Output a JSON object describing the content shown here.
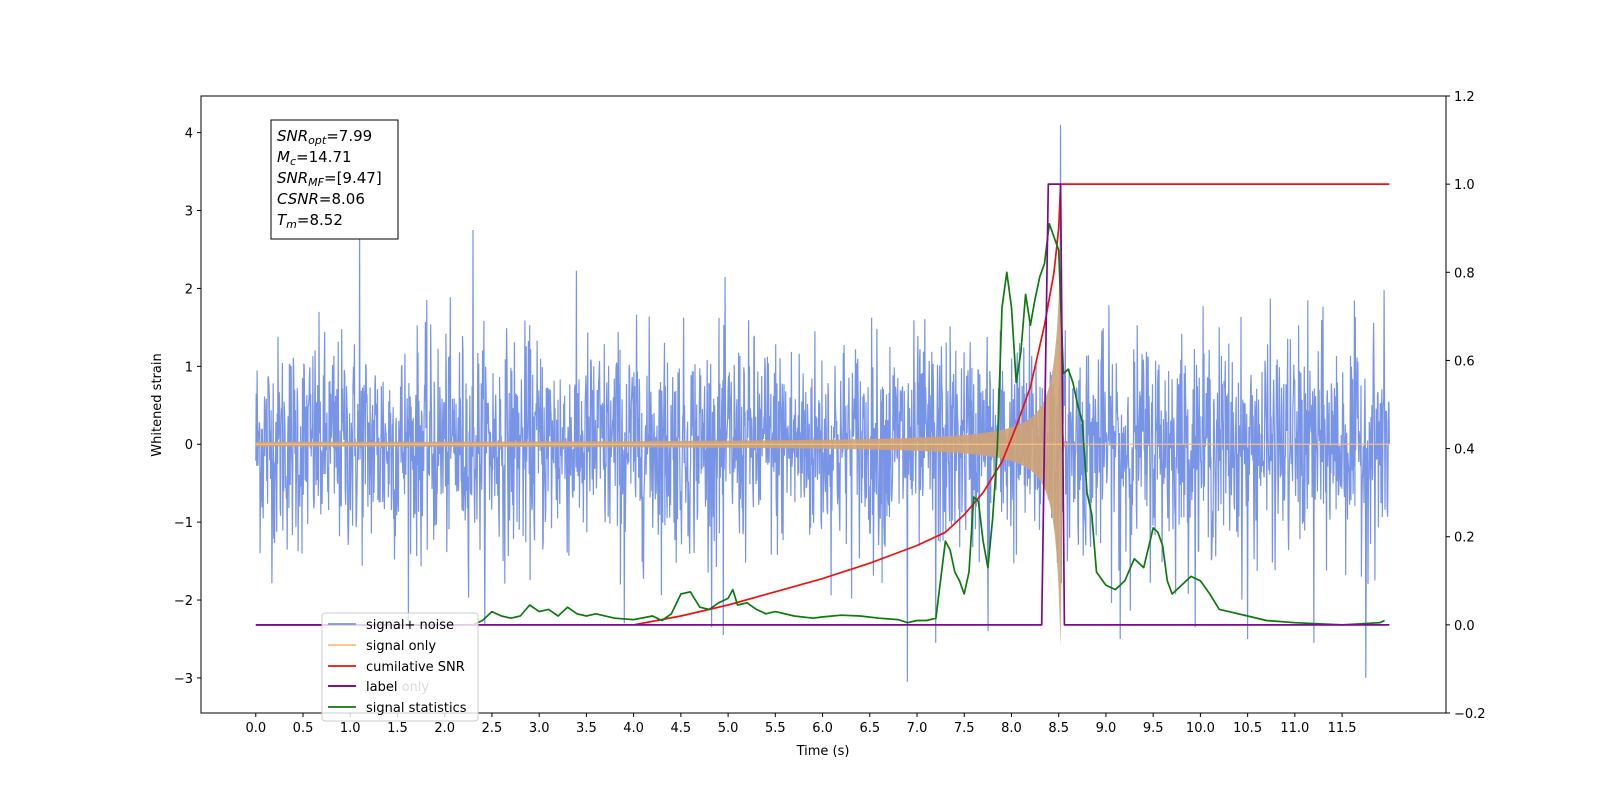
{
  "chart_data": {
    "type": "line",
    "xlabel": "Time (s)",
    "ylabel": "Whitened strain",
    "xlim": [
      -0.58,
      12.6
    ],
    "ylim": [
      -3.45,
      4.47
    ],
    "y2lim": [
      -0.2,
      1.2
    ],
    "x_ticks": [
      "0.0",
      "0.5",
      "1.0",
      "1.5",
      "2.0",
      "2.5",
      "3.0",
      "3.5",
      "4.0",
      "4.5",
      "5.0",
      "5.5",
      "6.0",
      "6.5",
      "7.0",
      "7.5",
      "8.0",
      "8.5",
      "9.0",
      "9.5",
      "10.0",
      "10.5",
      "11.0",
      "11.5"
    ],
    "y_ticks": [
      "−3",
      "−2",
      "−1",
      "0",
      "1",
      "2",
      "3",
      "4"
    ],
    "y2_ticks": [
      "−0.2",
      "0.0",
      "0.2",
      "0.4",
      "0.6",
      "0.8",
      "1.0",
      "1.2"
    ],
    "colors": {
      "signal_noise": "#7894e6",
      "signal_only": "#f5c27a",
      "signal_fill": "#cfa274",
      "cumulative_snr": "#ee1111",
      "label": "#7a0a8a",
      "statistics": "#0e7a0e"
    },
    "annotation": [
      {
        "base": "SNR",
        "sub": "opt",
        "value": "=7.99"
      },
      {
        "base": "M",
        "sub": "c",
        "value": "=14.71"
      },
      {
        "base": "SNR",
        "sub": "MF",
        "value": "=[9.47]"
      },
      {
        "base": "CSNR",
        "sub": "",
        "value": "=8.06"
      },
      {
        "base": "T",
        "sub": "m",
        "value": "=8.52"
      }
    ],
    "legend": [
      "signal+ noise",
      "signal only",
      "cumilative SNR",
      "label",
      "label only",
      "signal statistics"
    ],
    "legend_position": "lower-left",
    "series": [
      {
        "name": "signal+ noise",
        "axis": "left",
        "kind": "noise",
        "x_range": [
          0.0,
          12.0
        ],
        "std": 0.68,
        "spike_x": [
          1.1,
          2.3,
          3.9,
          4.95,
          6.9,
          7.2,
          7.75,
          8.52,
          9.15,
          10.5,
          11.2,
          11.75
        ],
        "spike_y": [
          2.7,
          2.75,
          -2.3,
          -2.45,
          -3.05,
          -2.55,
          -2.4,
          4.1,
          -2.5,
          -2.5,
          -2.55,
          -3.0
        ]
      },
      {
        "name": "signal only",
        "axis": "left",
        "kind": "chirp",
        "t_merger": 8.52,
        "peak_amplitude": 2.6
      },
      {
        "name": "cumilative SNR",
        "axis": "right",
        "x": [
          4.0,
          4.5,
          5.0,
          5.5,
          6.0,
          6.5,
          7.0,
          7.3,
          7.5,
          7.7,
          7.9,
          8.05,
          8.2,
          8.35,
          8.45,
          8.5,
          8.52,
          9.0,
          10.0,
          11.0,
          12.0
        ],
        "y": [
          0.0,
          0.02,
          0.045,
          0.075,
          0.105,
          0.14,
          0.18,
          0.21,
          0.25,
          0.3,
          0.37,
          0.45,
          0.54,
          0.68,
          0.8,
          0.9,
          1.0,
          1.0,
          1.0,
          1.0,
          1.0
        ]
      },
      {
        "name": "label",
        "axis": "right",
        "x": [
          0.0,
          8.32,
          8.39,
          8.52,
          8.56,
          12.0
        ],
        "y": [
          0.0,
          0.0,
          1.0,
          1.0,
          0.0,
          0.0
        ]
      },
      {
        "name": "signal statistics",
        "axis": "right",
        "x": [
          0.0,
          2.3,
          2.4,
          2.5,
          2.6,
          2.7,
          2.8,
          2.9,
          3.0,
          3.1,
          3.2,
          3.3,
          3.4,
          3.5,
          3.6,
          3.8,
          4.0,
          4.2,
          4.3,
          4.4,
          4.5,
          4.6,
          4.7,
          4.8,
          4.9,
          5.0,
          5.05,
          5.1,
          5.2,
          5.3,
          5.4,
          5.5,
          5.7,
          5.9,
          6.0,
          6.2,
          6.4,
          6.6,
          6.8,
          6.9,
          7.0,
          7.1,
          7.2,
          7.3,
          7.35,
          7.4,
          7.45,
          7.5,
          7.55,
          7.6,
          7.65,
          7.7,
          7.75,
          7.8,
          7.85,
          7.9,
          7.95,
          8.0,
          8.05,
          8.1,
          8.15,
          8.2,
          8.25,
          8.3,
          8.35,
          8.4,
          8.45,
          8.5,
          8.55,
          8.6,
          8.65,
          8.7,
          8.75,
          8.8,
          8.85,
          8.9,
          9.0,
          9.1,
          9.2,
          9.3,
          9.4,
          9.5,
          9.55,
          9.6,
          9.65,
          9.7,
          9.8,
          9.9,
          10.0,
          10.1,
          10.2,
          10.3,
          10.5,
          10.7,
          11.0,
          11.5,
          11.9,
          11.95
        ],
        "y": [
          0.0,
          0.0,
          0.01,
          0.03,
          0.02,
          0.015,
          0.02,
          0.045,
          0.03,
          0.035,
          0.02,
          0.04,
          0.025,
          0.02,
          0.025,
          0.015,
          0.012,
          0.02,
          0.01,
          0.025,
          0.07,
          0.075,
          0.04,
          0.035,
          0.05,
          0.06,
          0.08,
          0.045,
          0.05,
          0.035,
          0.025,
          0.03,
          0.02,
          0.015,
          0.018,
          0.022,
          0.02,
          0.015,
          0.012,
          0.005,
          0.01,
          0.01,
          0.015,
          0.19,
          0.17,
          0.12,
          0.1,
          0.07,
          0.12,
          0.29,
          0.28,
          0.19,
          0.13,
          0.24,
          0.4,
          0.72,
          0.8,
          0.72,
          0.55,
          0.62,
          0.75,
          0.68,
          0.74,
          0.79,
          0.82,
          0.91,
          0.88,
          0.85,
          0.57,
          0.58,
          0.55,
          0.5,
          0.46,
          0.3,
          0.25,
          0.12,
          0.09,
          0.08,
          0.1,
          0.15,
          0.13,
          0.22,
          0.21,
          0.18,
          0.1,
          0.07,
          0.09,
          0.11,
          0.1,
          0.07,
          0.035,
          0.03,
          0.02,
          0.01,
          0.005,
          0.0,
          0.005,
          0.01
        ]
      }
    ]
  }
}
